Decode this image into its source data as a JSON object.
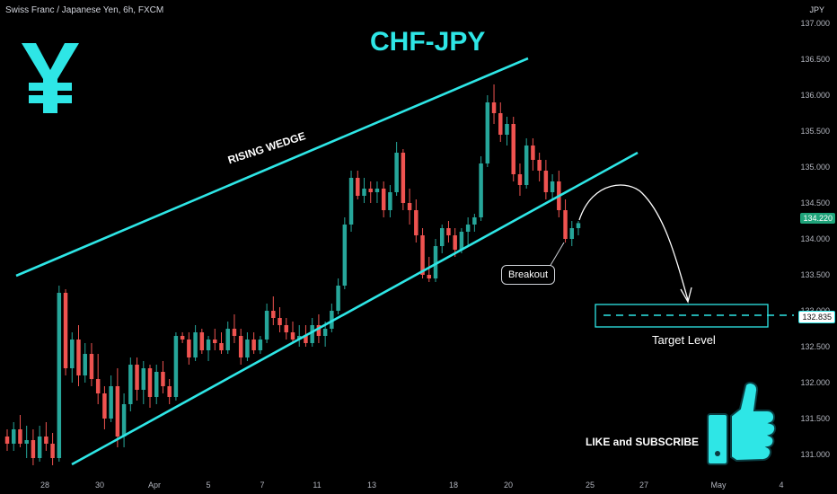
{
  "header": {
    "symbol_description": "Swiss Franc / Japanese Yen, 6h, FXCM",
    "currency": "JPY"
  },
  "annotations": {
    "title": "CHF-JPY",
    "wedge_label": "RISING WEDGE",
    "breakout_label": "Breakout",
    "target_label": "Target Level",
    "cta": "LIKE and SUBSCRIBE",
    "yen_symbol": "¥"
  },
  "price_badges": {
    "current": "134.220",
    "target": "132.835"
  },
  "colors": {
    "background": "#000000",
    "bull": "#26a69a",
    "bear": "#ef5350",
    "accent": "#2ee6e6",
    "text": "#d1d4dc"
  },
  "icons": [
    "yen-icon",
    "thumbs-up-icon"
  ],
  "chart_data": {
    "type": "candlestick",
    "title": "CHF-JPY",
    "y_ticks": [
      "137.000",
      "136.500",
      "136.000",
      "135.500",
      "135.000",
      "134.500",
      "134.000",
      "133.500",
      "133.000",
      "132.500",
      "132.000",
      "131.500",
      "131.000"
    ],
    "x_ticks": [
      "28",
      "30",
      "Apr",
      "5",
      "7",
      "11",
      "13",
      "18",
      "20",
      "25",
      "27",
      "May",
      "4"
    ],
    "ylim": [
      130.7,
      137.05
    ],
    "grid": false,
    "candles": [
      [
        131.25,
        131.35,
        131.05,
        131.15
      ],
      [
        131.15,
        131.45,
        131.05,
        131.35
      ],
      [
        131.35,
        131.55,
        131.1,
        131.15
      ],
      [
        131.15,
        131.4,
        130.95,
        131.2
      ],
      [
        131.2,
        131.35,
        130.85,
        130.95
      ],
      [
        130.95,
        131.4,
        130.9,
        131.25
      ],
      [
        131.25,
        131.45,
        131.05,
        131.15
      ],
      [
        131.15,
        131.3,
        130.85,
        130.95
      ],
      [
        130.95,
        133.35,
        130.9,
        133.25
      ],
      [
        133.25,
        133.3,
        132.1,
        132.2
      ],
      [
        132.2,
        132.7,
        132.0,
        132.6
      ],
      [
        132.6,
        132.8,
        131.95,
        132.1
      ],
      [
        132.1,
        132.55,
        132.0,
        132.4
      ],
      [
        132.4,
        132.55,
        131.95,
        132.05
      ],
      [
        132.05,
        132.4,
        131.7,
        131.85
      ],
      [
        131.85,
        131.95,
        131.35,
        131.5
      ],
      [
        131.5,
        132.1,
        131.45,
        131.95
      ],
      [
        131.95,
        132.2,
        131.1,
        131.25
      ],
      [
        131.25,
        131.85,
        131.1,
        131.7
      ],
      [
        131.7,
        132.35,
        131.6,
        132.25
      ],
      [
        132.25,
        132.35,
        131.75,
        131.9
      ],
      [
        131.9,
        132.3,
        131.7,
        132.2
      ],
      [
        132.2,
        132.25,
        131.65,
        131.8
      ],
      [
        131.8,
        132.25,
        131.7,
        132.15
      ],
      [
        132.15,
        132.3,
        131.85,
        131.95
      ],
      [
        131.95,
        132.05,
        131.7,
        131.8
      ],
      [
        131.8,
        132.7,
        131.75,
        132.65
      ],
      [
        132.65,
        132.7,
        132.55,
        132.6
      ],
      [
        132.6,
        132.7,
        132.25,
        132.35
      ],
      [
        132.35,
        132.8,
        132.3,
        132.7
      ],
      [
        132.7,
        132.75,
        132.4,
        132.45
      ],
      [
        132.45,
        132.65,
        132.3,
        132.6
      ],
      [
        132.6,
        132.75,
        132.45,
        132.55
      ],
      [
        132.55,
        132.7,
        132.4,
        132.45
      ],
      [
        132.45,
        132.85,
        132.4,
        132.75
      ],
      [
        132.75,
        132.95,
        132.55,
        132.65
      ],
      [
        132.65,
        132.75,
        132.25,
        132.35
      ],
      [
        132.35,
        132.7,
        132.3,
        132.6
      ],
      [
        132.6,
        132.7,
        132.4,
        132.45
      ],
      [
        132.45,
        132.65,
        132.4,
        132.6
      ],
      [
        132.6,
        133.1,
        132.55,
        133.0
      ],
      [
        133.0,
        133.2,
        132.8,
        132.9
      ],
      [
        132.9,
        133.05,
        132.7,
        132.8
      ],
      [
        132.8,
        132.9,
        132.6,
        132.7
      ],
      [
        132.7,
        132.85,
        132.55,
        132.6
      ],
      [
        132.6,
        132.8,
        132.5,
        132.65
      ],
      [
        132.65,
        132.8,
        132.5,
        132.55
      ],
      [
        132.55,
        132.9,
        132.5,
        132.8
      ],
      [
        132.8,
        132.95,
        132.55,
        132.65
      ],
      [
        132.65,
        132.85,
        132.5,
        132.75
      ],
      [
        132.75,
        133.1,
        132.7,
        133.0
      ],
      [
        133.0,
        133.45,
        132.95,
        133.35
      ],
      [
        133.35,
        134.3,
        133.3,
        134.2
      ],
      [
        134.2,
        134.95,
        134.1,
        134.85
      ],
      [
        134.85,
        134.95,
        134.55,
        134.6
      ],
      [
        134.6,
        134.85,
        134.5,
        134.7
      ],
      [
        134.7,
        134.8,
        134.5,
        134.65
      ],
      [
        134.65,
        134.8,
        134.5,
        134.7
      ],
      [
        134.7,
        134.8,
        134.3,
        134.4
      ],
      [
        134.4,
        134.75,
        134.3,
        134.65
      ],
      [
        134.65,
        135.35,
        134.6,
        135.2
      ],
      [
        135.2,
        135.25,
        134.4,
        134.5
      ],
      [
        134.5,
        134.7,
        134.2,
        134.4
      ],
      [
        134.4,
        134.55,
        133.95,
        134.05
      ],
      [
        134.05,
        134.15,
        133.45,
        133.5
      ],
      [
        133.5,
        133.75,
        133.4,
        133.45
      ],
      [
        133.45,
        134.0,
        133.4,
        133.9
      ],
      [
        133.9,
        134.2,
        133.8,
        134.15
      ],
      [
        134.15,
        134.25,
        133.95,
        134.05
      ],
      [
        134.05,
        134.15,
        133.75,
        133.85
      ],
      [
        133.85,
        134.15,
        133.8,
        134.1
      ],
      [
        134.1,
        134.3,
        133.9,
        134.2
      ],
      [
        134.2,
        134.35,
        134.1,
        134.3
      ],
      [
        134.3,
        135.15,
        134.25,
        135.05
      ],
      [
        135.05,
        136.0,
        135.0,
        135.9
      ],
      [
        135.9,
        136.15,
        135.6,
        135.75
      ],
      [
        135.75,
        135.9,
        135.35,
        135.45
      ],
      [
        135.45,
        135.7,
        135.3,
        135.6
      ],
      [
        135.6,
        135.7,
        134.8,
        134.9
      ],
      [
        134.9,
        135.05,
        134.6,
        134.75
      ],
      [
        134.75,
        135.4,
        134.7,
        135.3
      ],
      [
        135.3,
        135.4,
        134.95,
        135.1
      ],
      [
        135.1,
        135.2,
        134.8,
        134.95
      ],
      [
        134.95,
        135.1,
        134.55,
        134.65
      ],
      [
        134.65,
        134.9,
        134.55,
        134.8
      ],
      [
        134.8,
        134.95,
        134.3,
        134.4
      ],
      [
        134.4,
        134.55,
        133.95,
        134.0
      ],
      [
        134.0,
        134.25,
        133.9,
        134.15
      ],
      [
        134.15,
        134.25,
        134.05,
        134.22
      ]
    ]
  }
}
